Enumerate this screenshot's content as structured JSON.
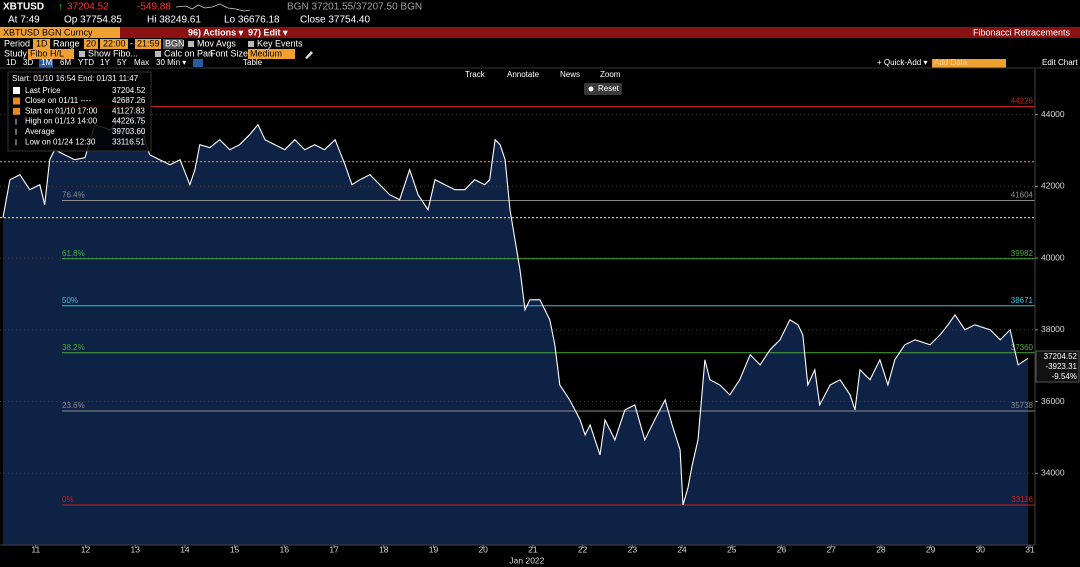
{
  "header": {
    "ticker": "XBTUSD",
    "arrow": "↑",
    "last": "37204.52",
    "change": "-549.88",
    "quote": "BGN 37201.55/37207.50 BGN",
    "stats": [
      "At 7:49",
      "Op 37754.85",
      "Hi 38249.61",
      "Lo 36676.18",
      "Close 37754.40"
    ],
    "security": "XBTUSD BGN Curncy",
    "actions": "96) Actions ▾",
    "edit": "97) Edit ▾",
    "function_title": "Fibonacci Retracements",
    "period_label": "Period",
    "period": "1D",
    "range_label": "Range",
    "range_count": "20",
    "range_from": "22:00",
    "range_dash": "-",
    "range_to": "21:59",
    "source": "BGN",
    "mov_avgs": "Mov Avgs",
    "key_events": "Key Events",
    "study_label": "Study",
    "study": "Fibo H/L",
    "show_fibo": "Show Fibo...",
    "calc_on_pan": "Calc on Pan",
    "font_size_label": "Font Size",
    "font_size": "Medium",
    "ranges": [
      "1D",
      "3D",
      "1M",
      "6M",
      "YTD",
      "1Y",
      "5Y",
      "Max"
    ],
    "interval": "30 Min ▾",
    "table": "Table",
    "quick_add": "+ Quick-Add ▾",
    "add_data": "Add Data",
    "edit_chart": "Edit Chart"
  },
  "toolbar": {
    "track": "Track",
    "annotate": "Annotate",
    "news": "News",
    "zoom": "Zoom",
    "reset": "Reset"
  },
  "legend": {
    "span": "Start: 01/10 16:54 End: 01/31 11:47",
    "rows": [
      {
        "label": "Close on 01/11 ----",
        "value": "42687.26",
        "swatch": "#e8891a"
      },
      {
        "label": "Start on 01/10 17:00",
        "value": "41127.83",
        "swatch": "#e8891a"
      },
      {
        "label": "High on 01/13 14:00",
        "value": "44226.75"
      },
      {
        "label": "Average",
        "value": "39703.60"
      },
      {
        "label": "Low on 01/24 12:30",
        "value": "33116.51"
      }
    ],
    "last_value": "37204.52"
  },
  "chart_data": {
    "type": "line",
    "x_label": "Jan 2022",
    "x": [
      10.84,
      10.98,
      11.18,
      11.38,
      11.58,
      11.68,
      11.78,
      11.88,
      12.08,
      12.28,
      12.49,
      12.69,
      12.99,
      13.19,
      13.39,
      13.57,
      13.69,
      13.79,
      13.99,
      14.2,
      14.4,
      14.6,
      14.7,
      14.8,
      15.0,
      15.2,
      15.4,
      15.6,
      15.8,
      15.97,
      16.11,
      16.31,
      16.51,
      16.71,
      16.91,
      17.11,
      17.31,
      17.52,
      17.72,
      17.86,
      18.02,
      18.22,
      18.42,
      18.62,
      18.82,
      19.02,
      19.19,
      19.39,
      19.53,
      19.73,
      19.93,
      20.13,
      20.33,
      20.53,
      20.63,
      20.74,
      20.84,
      20.94,
      21.04,
      21.14,
      21.24,
      21.34,
      21.44,
      21.64,
      21.84,
      21.94,
      22.04,
      22.24,
      22.45,
      22.55,
      22.65,
      22.85,
      22.95,
      23.15,
      23.35,
      23.55,
      23.75,
      23.95,
      24.16,
      24.3,
      24.46,
      24.52,
      24.62,
      24.7,
      24.82,
      24.96,
      25.06,
      25.26,
      25.46,
      25.66,
      25.87,
      26.07,
      26.27,
      26.47,
      26.67,
      26.83,
      26.93,
      27.03,
      27.17,
      27.27,
      27.48,
      27.68,
      27.88,
      27.98,
      28.08,
      28.28,
      28.48,
      28.64,
      28.78,
      28.98,
      29.19,
      29.49,
      29.69,
      29.85,
      29.99,
      30.19,
      30.39,
      30.7,
      30.9,
      31.1,
      31.26,
      31.46
    ],
    "series": [
      {
        "name": "Last Price",
        "color": "#ffffff",
        "area_color": "#0e2246",
        "values": [
          41128,
          42185,
          42325,
          41906,
          42046,
          41488,
          42743,
          43022,
          42883,
          42743,
          42799,
          43720,
          43580,
          43859,
          43999,
          44226,
          43301,
          42883,
          42743,
          42604,
          42743,
          42046,
          42464,
          43162,
          43078,
          43301,
          43022,
          43162,
          43441,
          43720,
          43301,
          43162,
          43022,
          43301,
          43022,
          43162,
          43022,
          43301,
          42604,
          42046,
          42185,
          42325,
          42046,
          41767,
          41627,
          42464,
          41767,
          41348,
          42185,
          42046,
          41906,
          41906,
          42185,
          42046,
          42185,
          43301,
          43162,
          42743,
          41348,
          40511,
          39674,
          38558,
          38837,
          38837,
          38279,
          37581,
          36465,
          36047,
          35489,
          35070,
          35349,
          34512,
          35489,
          34931,
          35768,
          35907,
          34931,
          35489,
          36047,
          35349,
          34652,
          33116,
          33600,
          34200,
          34931,
          37163,
          36605,
          36465,
          36186,
          36605,
          37302,
          37023,
          37442,
          37721,
          38279,
          38140,
          37860,
          36465,
          36884,
          35907,
          36465,
          36605,
          36186,
          35768,
          36884,
          36605,
          37163,
          36465,
          37163,
          37581,
          37721,
          37581,
          37860,
          38140,
          38419,
          38000,
          38140,
          38000,
          37721,
          38000,
          37023,
          37204.52
        ]
      }
    ],
    "xlim": [
      10.78,
      31.6
    ],
    "xticks": [
      {
        "value": 11.5,
        "label": "11"
      },
      {
        "value": 12.5,
        "label": "12"
      },
      {
        "value": 13.5,
        "label": "13"
      },
      {
        "value": 14.5,
        "label": "14"
      },
      {
        "value": 15.5,
        "label": "15"
      },
      {
        "value": 16.5,
        "label": "16"
      },
      {
        "value": 17.5,
        "label": "17"
      },
      {
        "value": 18.5,
        "label": "18"
      },
      {
        "value": 19.5,
        "label": "19"
      },
      {
        "value": 20.5,
        "label": "20"
      },
      {
        "value": 21.5,
        "label": "21"
      },
      {
        "value": 22.5,
        "label": "22"
      },
      {
        "value": 23.5,
        "label": "23"
      },
      {
        "value": 24.5,
        "label": "24"
      },
      {
        "value": 25.5,
        "label": "25"
      },
      {
        "value": 26.5,
        "label": "26"
      },
      {
        "value": 27.5,
        "label": "27"
      },
      {
        "value": 28.5,
        "label": "28"
      },
      {
        "value": 29.5,
        "label": "29"
      },
      {
        "value": 30.5,
        "label": "30"
      },
      {
        "value": 31.5,
        "label": "31"
      }
    ],
    "ylim": [
      32000,
      45300
    ],
    "yticks": [
      34000,
      36000,
      38000,
      40000,
      42000,
      44000
    ],
    "grid": true,
    "levels": [
      {
        "value": 44226,
        "color": "#c8201e",
        "show_value": true
      },
      {
        "value": 42687.26,
        "color": "#e8891a",
        "dash": true
      },
      {
        "value": 41604,
        "pct": "76.4%",
        "color": "#8a8a8a",
        "show_value": true
      },
      {
        "value": 41127.83,
        "color": "#f0c020",
        "dash": true
      },
      {
        "value": 39982,
        "pct": "61.8%",
        "color": "#4aa83a",
        "show_value": true
      },
      {
        "value": 38671,
        "pct": "50%",
        "color": "#38c0e0",
        "show_value": true
      },
      {
        "value": 37360,
        "pct": "38.2%",
        "color": "#4aa83a",
        "show_value": true
      },
      {
        "value": 35738,
        "pct": "23.6%",
        "color": "#8a8a8a",
        "show_value": true
      },
      {
        "value": 33116,
        "pct": "0%",
        "color": "#c8201e",
        "show_value": true
      }
    ],
    "last_tag": [
      "37204.52",
      "-3923.31",
      "-9.54%"
    ]
  }
}
